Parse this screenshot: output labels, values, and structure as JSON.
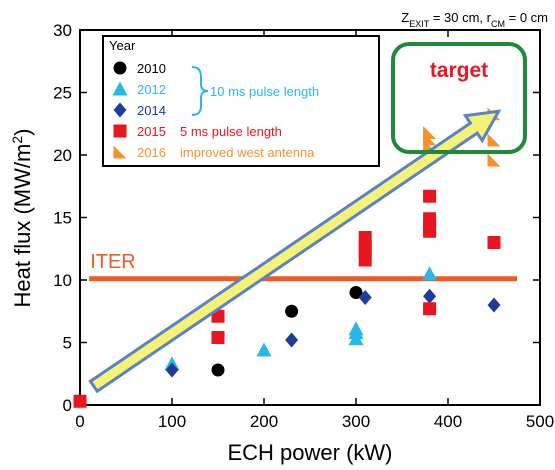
{
  "chart_data": {
    "type": "scatter",
    "subtitle": "Z_EXIT = 30 cm, r_CM = 0 cm",
    "subtitle_parts": {
      "z": "Z",
      "z_sub": "EXIT",
      "z_rest": " = 30 cm, r",
      "r_sub": "CM",
      "r_rest": " = 0 cm"
    },
    "xlabel": "ECH power (kW)",
    "ylabel_main": "Heat flux (MW/m",
    "ylabel_sup": "2",
    "ylabel_close": ")",
    "xlim": [
      0,
      500
    ],
    "ylim": [
      0,
      30
    ],
    "xticks": [
      "0",
      "100",
      "200",
      "300",
      "400",
      "500"
    ],
    "yticks": [
      "0",
      "5",
      "10",
      "15",
      "20",
      "25",
      "30"
    ],
    "legend_title": "Year",
    "legend_placement": "top-left",
    "bracket_label": "10 ms pulse length",
    "series": [
      {
        "name": "2010",
        "note": "",
        "marker": "circle",
        "color": "#000000",
        "points": [
          [
            150,
            2.8
          ],
          [
            230,
            7.5
          ],
          [
            300,
            9.0
          ]
        ]
      },
      {
        "name": "2012",
        "note": "",
        "marker": "triangle",
        "color": "#29b7e8",
        "points": [
          [
            100,
            3.3
          ],
          [
            200,
            4.4
          ],
          [
            300,
            5.3
          ],
          [
            300,
            5.8
          ],
          [
            300,
            6.1
          ],
          [
            380,
            10.5
          ]
        ]
      },
      {
        "name": "2014",
        "note": "",
        "marker": "diamond",
        "color": "#1f3c9c",
        "points": [
          [
            100,
            2.8
          ],
          [
            230,
            5.2
          ],
          [
            310,
            8.6
          ],
          [
            380,
            8.7
          ],
          [
            450,
            8.0
          ]
        ]
      },
      {
        "name": "2015",
        "note": "5 ms pulse length",
        "marker": "square",
        "color": "#e8161e",
        "points": [
          [
            0,
            0.3
          ],
          [
            150,
            5.4
          ],
          [
            150,
            7.1
          ],
          [
            310,
            11.6
          ],
          [
            310,
            12.3
          ],
          [
            310,
            12.7
          ],
          [
            310,
            13.4
          ],
          [
            380,
            7.7
          ],
          [
            380,
            13.9
          ],
          [
            380,
            14.3
          ],
          [
            380,
            14.9
          ],
          [
            380,
            16.7
          ],
          [
            450,
            13.0
          ]
        ]
      },
      {
        "name": "2016",
        "note": "improved west antenna",
        "marker": "tri-corner",
        "color": "#f5922b",
        "points": [
          [
            380,
            19.8
          ],
          [
            380,
            20.7
          ],
          [
            380,
            21.3
          ],
          [
            380,
            21.8
          ],
          [
            450,
            19.6
          ],
          [
            450,
            21.2
          ],
          [
            450,
            23.3
          ]
        ]
      }
    ],
    "iter_line": {
      "label": "ITER",
      "y": 10.1,
      "x_range": [
        10,
        475
      ],
      "color": "#f15a24"
    },
    "target_box": {
      "label": "target",
      "label_color": "#e8161e",
      "border_color": "#1e8a3c"
    },
    "arrow": {
      "from": [
        15,
        1.5
      ],
      "to": [
        455,
        23.5
      ],
      "fill": "#f8f178",
      "stroke": "#5a82c8"
    }
  }
}
